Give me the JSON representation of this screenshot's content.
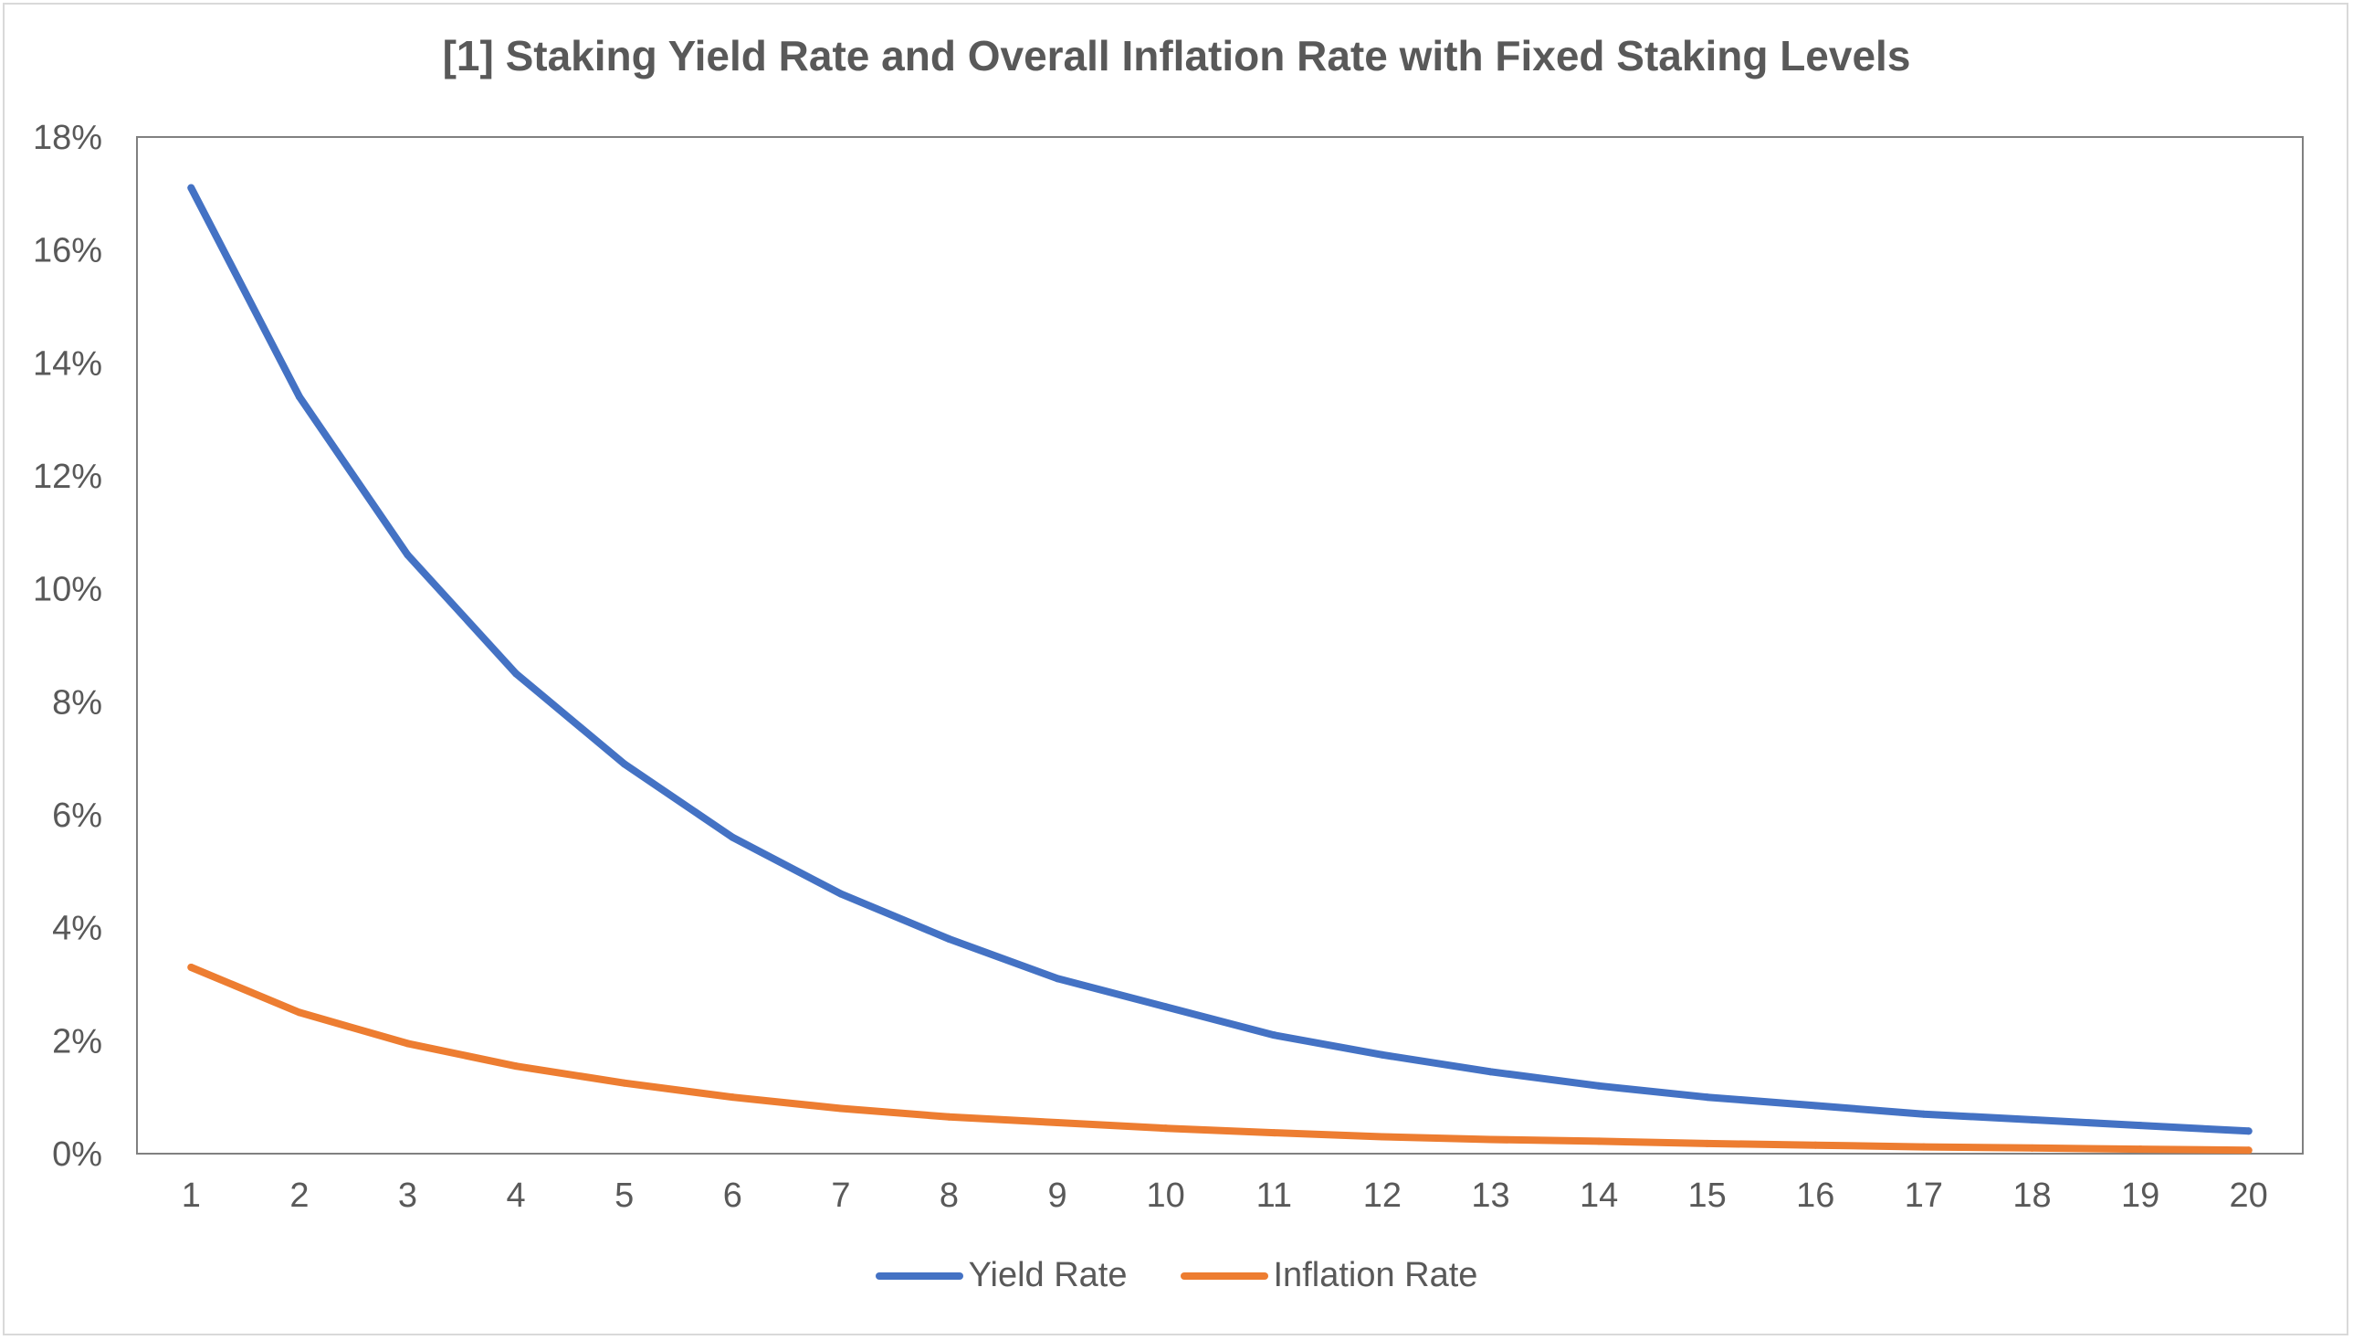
{
  "chart_data": {
    "type": "line",
    "title": "[1] Staking Yield Rate and Overall Inflation Rate with Fixed Staking Levels",
    "xlabel": "",
    "ylabel": "",
    "categories": [
      "1",
      "2",
      "3",
      "4",
      "5",
      "6",
      "7",
      "8",
      "9",
      "10",
      "11",
      "12",
      "13",
      "14",
      "15",
      "16",
      "17",
      "18",
      "19",
      "20"
    ],
    "ylim": [
      0,
      18
    ],
    "yticks": [
      0,
      2,
      4,
      6,
      8,
      10,
      12,
      14,
      16,
      18
    ],
    "ytick_labels": [
      "0%",
      "2%",
      "4%",
      "6%",
      "8%",
      "10%",
      "12%",
      "14%",
      "16%",
      "18%"
    ],
    "grid": false,
    "legend_position": "bottom",
    "series": [
      {
        "name": "Yield Rate",
        "color": "#4472c4",
        "values": [
          17.1,
          13.4,
          10.6,
          8.5,
          6.9,
          5.6,
          4.6,
          3.8,
          3.1,
          2.6,
          2.1,
          1.75,
          1.45,
          1.2,
          1.0,
          0.85,
          0.7,
          0.6,
          0.5,
          0.4
        ]
      },
      {
        "name": "Inflation Rate",
        "color": "#ed7d31",
        "values": [
          3.3,
          2.5,
          1.95,
          1.55,
          1.25,
          1.0,
          0.8,
          0.65,
          0.55,
          0.45,
          0.37,
          0.3,
          0.25,
          0.22,
          0.18,
          0.15,
          0.12,
          0.1,
          0.08,
          0.06
        ]
      }
    ]
  }
}
